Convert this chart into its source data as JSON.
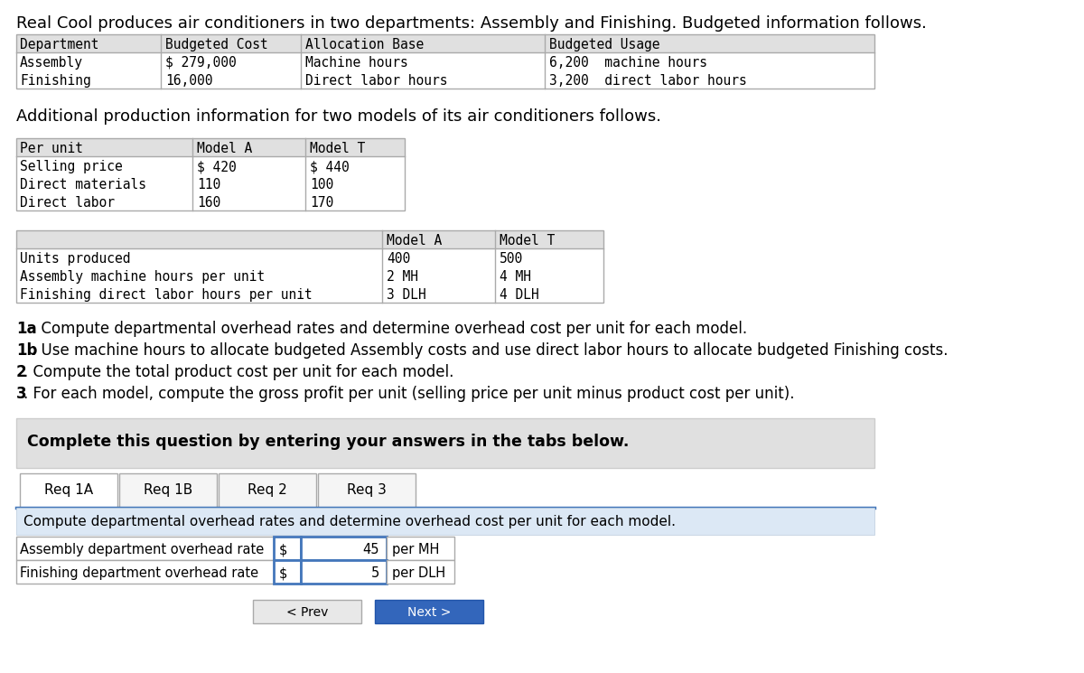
{
  "title": "Real Cool produces air conditioners in two departments: Assembly and Finishing. Budgeted information follows.",
  "bg_color": "#ffffff",
  "table1_rows": [
    [
      "Assembly",
      "$ 279,000",
      "Machine hours",
      "6,200  machine hours"
    ],
    [
      "Finishing",
      "16,000",
      "Direct labor hours",
      "3,200  direct labor hours"
    ]
  ],
  "subtitle": "Additional production information for two models of its air conditioners follows.",
  "table2_rows": [
    [
      "Selling price",
      "$ 420",
      "$ 440"
    ],
    [
      "Direct materials",
      "110",
      "100"
    ],
    [
      "Direct labor",
      "160",
      "170"
    ]
  ],
  "table3_rows": [
    [
      "Units produced",
      "400",
      "500"
    ],
    [
      "Assembly machine hours per unit",
      "2 MH",
      "4 MH"
    ],
    [
      "Finishing direct labor hours per unit",
      "3 DLH",
      "4 DLH"
    ]
  ],
  "instructions": [
    [
      "1a",
      ". Compute departmental overhead rates and determine overhead cost per unit for each model."
    ],
    [
      "1b",
      ". Use machine hours to allocate budgeted Assembly costs and use direct labor hours to allocate budgeted Finishing costs."
    ],
    [
      "2",
      ". Compute the total product cost per unit for each model."
    ],
    [
      "3",
      ". For each model, compute the gross profit per unit (selling price per unit minus product cost per unit)."
    ]
  ],
  "banner_text": "Complete this question by entering your answers in the tabs below.",
  "tabs": [
    "Req 1A",
    "Req 1B",
    "Req 2",
    "Req 3"
  ],
  "active_tab": 0,
  "req_description": "Compute departmental overhead rates and determine overhead cost per unit for each model.",
  "answer_rows": [
    [
      "Assembly department overhead rate",
      "$",
      "45",
      "per MH"
    ],
    [
      "Finishing department overhead rate",
      "$",
      "5",
      "per DLH"
    ]
  ]
}
